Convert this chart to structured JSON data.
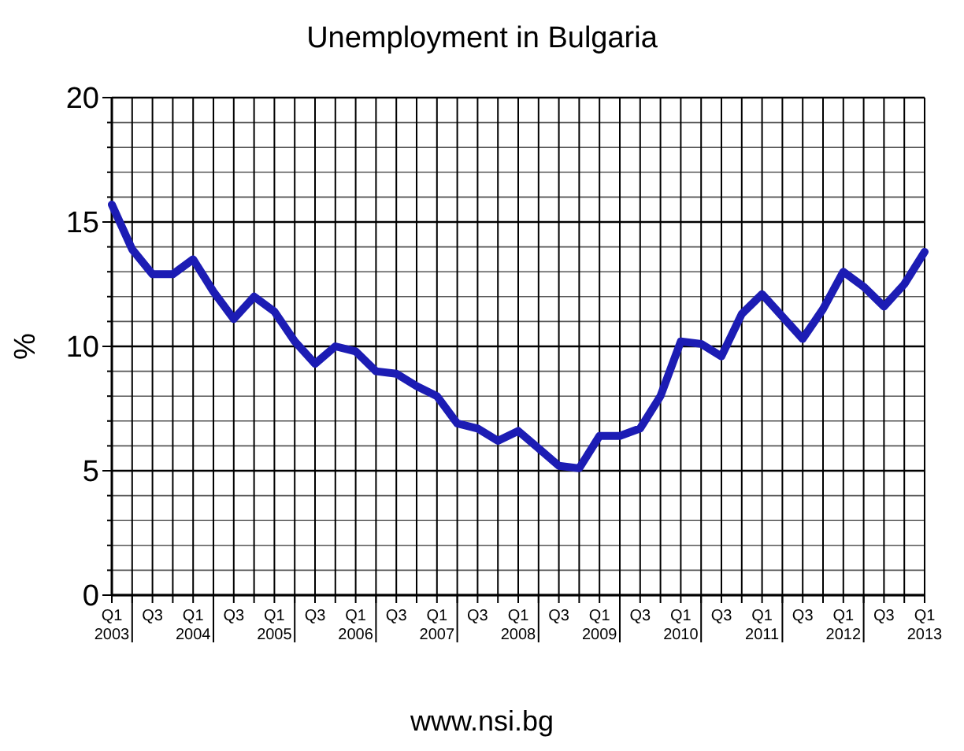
{
  "chart_data": {
    "type": "line",
    "title": "Unemployment in Bulgaria",
    "ylabel": "%",
    "categories": [
      "Q1 2003",
      null,
      "Q3",
      null,
      "Q1 2004",
      null,
      "Q3",
      null,
      "Q1 2005",
      null,
      "Q3",
      null,
      "Q1 2006",
      null,
      "Q3",
      null,
      "Q1 2007",
      null,
      "Q3",
      null,
      "Q1 2008",
      null,
      "Q3",
      null,
      "Q1 2009",
      null,
      "Q3",
      null,
      "Q1 2010",
      null,
      "Q3",
      null,
      "Q1 2011",
      null,
      "Q3",
      null,
      "Q1 2012",
      null,
      "Q3",
      null,
      "Q1 2013"
    ],
    "series": [
      {
        "color": "#1c1cb4",
        "values": [
          15.7,
          13.9,
          12.9,
          12.9,
          13.5,
          12.2,
          11.1,
          12.0,
          11.4,
          10.2,
          9.3,
          10.0,
          9.8,
          9.0,
          8.9,
          8.4,
          8.0,
          6.9,
          6.7,
          6.2,
          6.6,
          5.9,
          5.2,
          5.1,
          6.4,
          6.4,
          6.7,
          8.0,
          10.2,
          10.1,
          9.6,
          11.3,
          12.1,
          11.2,
          10.3,
          11.5,
          13.0,
          12.4,
          11.6,
          12.5,
          13.8
        ]
      }
    ],
    "ylim": [
      0,
      20
    ],
    "yticks": [
      0,
      {
        "value": 1,
        "label": null
      },
      {
        "value": 2,
        "label": null
      },
      {
        "value": 3,
        "label": null
      },
      {
        "value": 4,
        "label": null
      },
      5,
      {
        "value": 6,
        "label": null
      },
      {
        "value": 7,
        "label": null
      },
      {
        "value": 8,
        "label": null
      },
      {
        "value": 9,
        "label": null
      },
      10,
      {
        "value": 11,
        "label": null
      },
      {
        "value": 12,
        "label": null
      },
      {
        "value": 13,
        "label": null
      },
      {
        "value": 14,
        "label": null
      },
      15,
      {
        "value": 16,
        "label": null
      },
      {
        "value": 17,
        "label": null
      },
      {
        "value": 18,
        "label": null
      },
      {
        "value": 19,
        "label": null
      },
      20
    ],
    "grid": true,
    "marker": "none",
    "line_style": "solid",
    "annotations": [
      "www.nsi.bg"
    ]
  }
}
